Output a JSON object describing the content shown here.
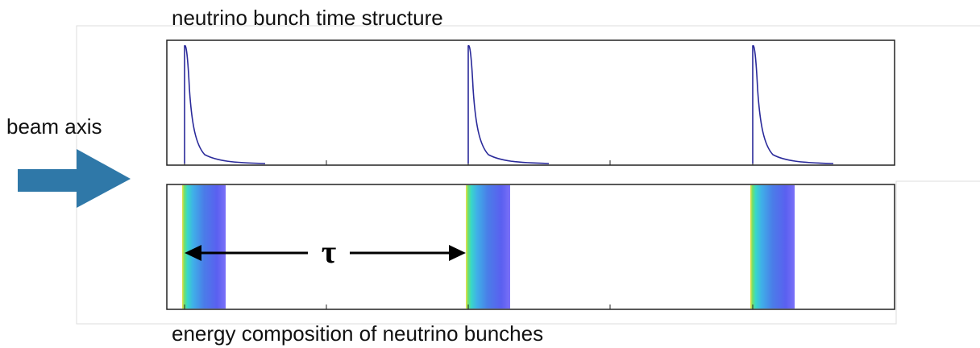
{
  "title": "neutrino bunch time structure",
  "beam_label": "beam axis",
  "period_label": "τ",
  "caption": "energy composition of neutrino bunches"
}
